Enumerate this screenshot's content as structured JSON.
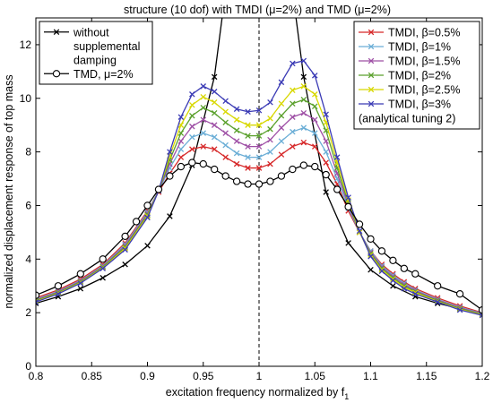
{
  "chart_data": {
    "type": "line",
    "title": "structure (10 dof) with TMDI (μ=2%) and TMD (μ=2%)",
    "xlabel": "excitation frequency normalized by f",
    "xlabel_sub": "1",
    "ylabel": "normalized displacement response of top mass",
    "xlim": [
      0.8,
      1.2
    ],
    "ylim": [
      0,
      13
    ],
    "xticks": [
      "0.8",
      "0.85",
      "0.9",
      "0.95",
      "1",
      "1.05",
      "1.1",
      "1.15",
      "1.2"
    ],
    "xtick_values": [
      0.8,
      0.85,
      0.9,
      0.95,
      1.0,
      1.05,
      1.1,
      1.15,
      1.2
    ],
    "yticks": [
      "0",
      "2",
      "4",
      "6",
      "8",
      "10",
      "12"
    ],
    "ytick_values": [
      0,
      2,
      4,
      6,
      8,
      10,
      12
    ],
    "vline_x": 1.0,
    "legend_left": {
      "placement": "top-left",
      "entries": [
        {
          "series": "without",
          "lines": [
            "without",
            "supplemental",
            "damping"
          ]
        },
        {
          "series": "tmd",
          "lines": [
            "TMD, μ=2%"
          ]
        }
      ]
    },
    "legend_right": {
      "placement": "top-right",
      "entries": [
        {
          "series": "b05",
          "lines": [
            "TMDI, β=0.5%"
          ]
        },
        {
          "series": "b1",
          "lines": [
            "TMDI, β=1%"
          ]
        },
        {
          "series": "b15",
          "lines": [
            "TMDI, β=1.5%"
          ]
        },
        {
          "series": "b2",
          "lines": [
            "TMDI, β=2%"
          ]
        },
        {
          "series": "b25",
          "lines": [
            "TMDI, β=2.5%"
          ]
        },
        {
          "series": "b3",
          "lines": [
            "TMDI, β=3%"
          ]
        }
      ],
      "note": "(analytical tuning 2)"
    },
    "series": [
      {
        "id": "without",
        "name": "without supplemental damping",
        "color": "#000000",
        "marker": "x",
        "points": [
          [
            0.8,
            2.35
          ],
          [
            0.82,
            2.6
          ],
          [
            0.84,
            2.9
          ],
          [
            0.86,
            3.3
          ],
          [
            0.88,
            3.8
          ],
          [
            0.9,
            4.5
          ],
          [
            0.92,
            5.6
          ],
          [
            0.94,
            7.5
          ],
          [
            0.96,
            10.8
          ],
          [
            0.97,
            14
          ],
          [
            1.03,
            14
          ],
          [
            1.04,
            10.8
          ],
          [
            1.06,
            6.5
          ],
          [
            1.08,
            4.6
          ],
          [
            1.1,
            3.6
          ],
          [
            1.12,
            3.0
          ],
          [
            1.14,
            2.6
          ],
          [
            1.16,
            2.35
          ],
          [
            1.18,
            2.15
          ],
          [
            1.2,
            2.0
          ]
        ]
      },
      {
        "id": "b05",
        "name": "TMDI, β=0.5%",
        "color": "#d62728",
        "marker": "x",
        "points": [
          [
            0.8,
            2.55
          ],
          [
            0.82,
            2.85
          ],
          [
            0.84,
            3.25
          ],
          [
            0.86,
            3.8
          ],
          [
            0.88,
            4.6
          ],
          [
            0.9,
            5.8
          ],
          [
            0.91,
            6.5
          ],
          [
            0.92,
            7.2
          ],
          [
            0.93,
            7.8
          ],
          [
            0.94,
            8.1
          ],
          [
            0.95,
            8.2
          ],
          [
            0.96,
            8.1
          ],
          [
            0.97,
            7.8
          ],
          [
            0.98,
            7.55
          ],
          [
            0.99,
            7.4
          ],
          [
            1.0,
            7.4
          ],
          [
            1.01,
            7.55
          ],
          [
            1.02,
            7.9
          ],
          [
            1.03,
            8.2
          ],
          [
            1.04,
            8.35
          ],
          [
            1.05,
            8.2
          ],
          [
            1.06,
            7.6
          ],
          [
            1.07,
            6.8
          ],
          [
            1.08,
            5.8
          ],
          [
            1.09,
            5.0
          ],
          [
            1.1,
            4.3
          ],
          [
            1.11,
            3.8
          ],
          [
            1.12,
            3.45
          ],
          [
            1.13,
            3.15
          ],
          [
            1.14,
            2.9
          ],
          [
            1.16,
            2.55
          ],
          [
            1.18,
            2.25
          ],
          [
            1.2,
            2.0
          ]
        ]
      },
      {
        "id": "b1",
        "name": "TMDI, β=1%",
        "color": "#6baed6",
        "marker": "x",
        "points": [
          [
            0.8,
            2.5
          ],
          [
            0.82,
            2.8
          ],
          [
            0.84,
            3.2
          ],
          [
            0.86,
            3.75
          ],
          [
            0.88,
            4.55
          ],
          [
            0.9,
            5.75
          ],
          [
            0.91,
            6.55
          ],
          [
            0.92,
            7.4
          ],
          [
            0.93,
            8.1
          ],
          [
            0.94,
            8.55
          ],
          [
            0.95,
            8.7
          ],
          [
            0.96,
            8.55
          ],
          [
            0.97,
            8.25
          ],
          [
            0.98,
            7.95
          ],
          [
            0.99,
            7.8
          ],
          [
            1.0,
            7.8
          ],
          [
            1.01,
            8.0
          ],
          [
            1.02,
            8.4
          ],
          [
            1.03,
            8.75
          ],
          [
            1.04,
            8.9
          ],
          [
            1.05,
            8.7
          ],
          [
            1.06,
            8.0
          ],
          [
            1.07,
            7.0
          ],
          [
            1.08,
            5.9
          ],
          [
            1.09,
            5.0
          ],
          [
            1.1,
            4.3
          ],
          [
            1.11,
            3.75
          ],
          [
            1.12,
            3.4
          ],
          [
            1.13,
            3.1
          ],
          [
            1.14,
            2.85
          ],
          [
            1.16,
            2.5
          ],
          [
            1.18,
            2.2
          ],
          [
            1.2,
            1.98
          ]
        ]
      },
      {
        "id": "b15",
        "name": "TMDI, β=1.5%",
        "color": "#9e4fa5",
        "marker": "x",
        "points": [
          [
            0.8,
            2.48
          ],
          [
            0.82,
            2.78
          ],
          [
            0.84,
            3.18
          ],
          [
            0.86,
            3.72
          ],
          [
            0.88,
            4.5
          ],
          [
            0.9,
            5.7
          ],
          [
            0.91,
            6.55
          ],
          [
            0.92,
            7.55
          ],
          [
            0.93,
            8.4
          ],
          [
            0.94,
            8.95
          ],
          [
            0.95,
            9.2
          ],
          [
            0.96,
            9.0
          ],
          [
            0.97,
            8.7
          ],
          [
            0.98,
            8.4
          ],
          [
            0.99,
            8.2
          ],
          [
            1.0,
            8.2
          ],
          [
            1.01,
            8.45
          ],
          [
            1.02,
            8.9
          ],
          [
            1.03,
            9.3
          ],
          [
            1.04,
            9.45
          ],
          [
            1.05,
            9.2
          ],
          [
            1.06,
            8.4
          ],
          [
            1.07,
            7.2
          ],
          [
            1.08,
            6.0
          ],
          [
            1.09,
            5.0
          ],
          [
            1.1,
            4.25
          ],
          [
            1.11,
            3.7
          ],
          [
            1.12,
            3.35
          ],
          [
            1.13,
            3.05
          ],
          [
            1.14,
            2.82
          ],
          [
            1.16,
            2.48
          ],
          [
            1.18,
            2.18
          ],
          [
            1.2,
            1.96
          ]
        ]
      },
      {
        "id": "b2",
        "name": "TMDI, β=2%",
        "color": "#5aa02c",
        "marker": "x",
        "points": [
          [
            0.8,
            2.45
          ],
          [
            0.82,
            2.75
          ],
          [
            0.84,
            3.15
          ],
          [
            0.86,
            3.7
          ],
          [
            0.88,
            4.45
          ],
          [
            0.9,
            5.65
          ],
          [
            0.91,
            6.55
          ],
          [
            0.92,
            7.7
          ],
          [
            0.93,
            8.7
          ],
          [
            0.94,
            9.35
          ],
          [
            0.95,
            9.65
          ],
          [
            0.96,
            9.45
          ],
          [
            0.97,
            9.1
          ],
          [
            0.98,
            8.8
          ],
          [
            0.99,
            8.6
          ],
          [
            1.0,
            8.6
          ],
          [
            1.01,
            8.85
          ],
          [
            1.02,
            9.35
          ],
          [
            1.03,
            9.8
          ],
          [
            1.04,
            9.95
          ],
          [
            1.05,
            9.7
          ],
          [
            1.06,
            8.8
          ],
          [
            1.07,
            7.4
          ],
          [
            1.08,
            6.1
          ],
          [
            1.09,
            5.0
          ],
          [
            1.1,
            4.2
          ],
          [
            1.11,
            3.65
          ],
          [
            1.12,
            3.3
          ],
          [
            1.13,
            3.0
          ],
          [
            1.14,
            2.78
          ],
          [
            1.16,
            2.45
          ],
          [
            1.18,
            2.15
          ],
          [
            1.2,
            1.94
          ]
        ]
      },
      {
        "id": "b25",
        "name": "TMDI, β=2.5%",
        "color": "#d8d800",
        "marker": "x",
        "points": [
          [
            0.8,
            2.42
          ],
          [
            0.82,
            2.72
          ],
          [
            0.84,
            3.12
          ],
          [
            0.86,
            3.67
          ],
          [
            0.88,
            4.4
          ],
          [
            0.9,
            5.6
          ],
          [
            0.91,
            6.55
          ],
          [
            0.92,
            7.85
          ],
          [
            0.93,
            9.0
          ],
          [
            0.94,
            9.75
          ],
          [
            0.95,
            10.05
          ],
          [
            0.96,
            9.85
          ],
          [
            0.97,
            9.5
          ],
          [
            0.98,
            9.2
          ],
          [
            0.99,
            9.0
          ],
          [
            1.0,
            9.0
          ],
          [
            1.01,
            9.25
          ],
          [
            1.02,
            9.8
          ],
          [
            1.03,
            10.3
          ],
          [
            1.04,
            10.45
          ],
          [
            1.05,
            10.15
          ],
          [
            1.06,
            9.1
          ],
          [
            1.07,
            7.6
          ],
          [
            1.08,
            6.2
          ],
          [
            1.09,
            5.0
          ],
          [
            1.1,
            4.15
          ],
          [
            1.11,
            3.6
          ],
          [
            1.12,
            3.25
          ],
          [
            1.13,
            2.95
          ],
          [
            1.14,
            2.75
          ],
          [
            1.16,
            2.42
          ],
          [
            1.18,
            2.12
          ],
          [
            1.2,
            1.92
          ]
        ]
      },
      {
        "id": "b3",
        "name": "TMDI, β=3%",
        "color": "#3b3bb5",
        "marker": "x",
        "points": [
          [
            0.8,
            2.4
          ],
          [
            0.82,
            2.7
          ],
          [
            0.84,
            3.1
          ],
          [
            0.86,
            3.65
          ],
          [
            0.88,
            4.35
          ],
          [
            0.9,
            5.55
          ],
          [
            0.91,
            6.55
          ],
          [
            0.92,
            8.0
          ],
          [
            0.93,
            9.3
          ],
          [
            0.94,
            10.15
          ],
          [
            0.95,
            10.45
          ],
          [
            0.96,
            10.25
          ],
          [
            0.97,
            9.9
          ],
          [
            0.98,
            9.6
          ],
          [
            0.99,
            9.5
          ],
          [
            1.0,
            9.55
          ],
          [
            1.01,
            9.85
          ],
          [
            1.02,
            10.6
          ],
          [
            1.03,
            11.3
          ],
          [
            1.04,
            11.4
          ],
          [
            1.05,
            10.85
          ],
          [
            1.06,
            9.4
          ],
          [
            1.07,
            7.8
          ],
          [
            1.08,
            6.3
          ],
          [
            1.09,
            5.05
          ],
          [
            1.1,
            4.1
          ],
          [
            1.11,
            3.55
          ],
          [
            1.12,
            3.2
          ],
          [
            1.13,
            2.9
          ],
          [
            1.14,
            2.7
          ],
          [
            1.16,
            2.4
          ],
          [
            1.18,
            2.1
          ],
          [
            1.2,
            1.9
          ]
        ]
      },
      {
        "id": "tmd",
        "name": "TMD, μ=2%",
        "color": "#000000",
        "marker": "o",
        "points": [
          [
            0.8,
            2.65
          ],
          [
            0.82,
            3.0
          ],
          [
            0.84,
            3.45
          ],
          [
            0.86,
            4.0
          ],
          [
            0.88,
            4.85
          ],
          [
            0.89,
            5.4
          ],
          [
            0.9,
            6.0
          ],
          [
            0.91,
            6.6
          ],
          [
            0.92,
            7.1
          ],
          [
            0.93,
            7.45
          ],
          [
            0.94,
            7.6
          ],
          [
            0.95,
            7.55
          ],
          [
            0.96,
            7.35
          ],
          [
            0.97,
            7.1
          ],
          [
            0.98,
            6.9
          ],
          [
            0.99,
            6.8
          ],
          [
            1.0,
            6.8
          ],
          [
            1.01,
            6.9
          ],
          [
            1.02,
            7.1
          ],
          [
            1.03,
            7.35
          ],
          [
            1.04,
            7.5
          ],
          [
            1.05,
            7.45
          ],
          [
            1.06,
            7.15
          ],
          [
            1.07,
            6.6
          ],
          [
            1.08,
            5.95
          ],
          [
            1.09,
            5.3
          ],
          [
            1.1,
            4.75
          ],
          [
            1.11,
            4.3
          ],
          [
            1.12,
            3.95
          ],
          [
            1.13,
            3.65
          ],
          [
            1.14,
            3.45
          ],
          [
            1.16,
            3.0
          ],
          [
            1.18,
            2.7
          ],
          [
            1.2,
            2.1
          ]
        ]
      }
    ]
  }
}
